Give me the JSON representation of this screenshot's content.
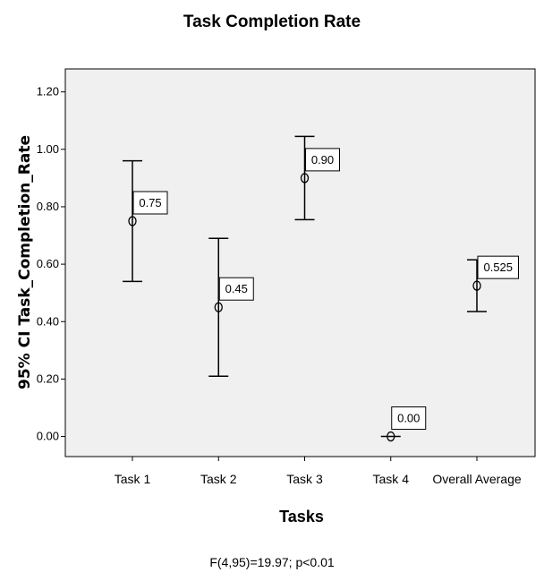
{
  "chart_data": {
    "type": "errorbar",
    "title": "Task Completion Rate",
    "xlabel": "Tasks",
    "ylabel": "95% CI Task_Completion_Rate",
    "ylim": [
      -0.07,
      1.28
    ],
    "yticks": [
      "0.00",
      "0.20",
      "0.40",
      "0.60",
      "0.80",
      "1.00",
      "1.20"
    ],
    "ytick_values": [
      0,
      0.2,
      0.4,
      0.6,
      0.8,
      1.0,
      1.2
    ],
    "categories": [
      "Task 1",
      "Task 2",
      "Task 3",
      "Task 4",
      "Overall Average"
    ],
    "means": [
      0.75,
      0.45,
      0.9,
      0.0,
      0.525
    ],
    "lower": [
      0.54,
      0.21,
      0.755,
      0.0,
      0.435
    ],
    "upper": [
      0.96,
      0.69,
      1.045,
      0.0,
      0.615
    ],
    "data_labels": [
      "0.75",
      "0.45",
      "0.90",
      "0.00",
      "0.525"
    ],
    "grid": false,
    "footnote": "F(4,95)=19.97; p<0.01"
  },
  "colors": {
    "plot_background": "#f0f0f0",
    "axis": "#000000",
    "marks": "#000000"
  }
}
